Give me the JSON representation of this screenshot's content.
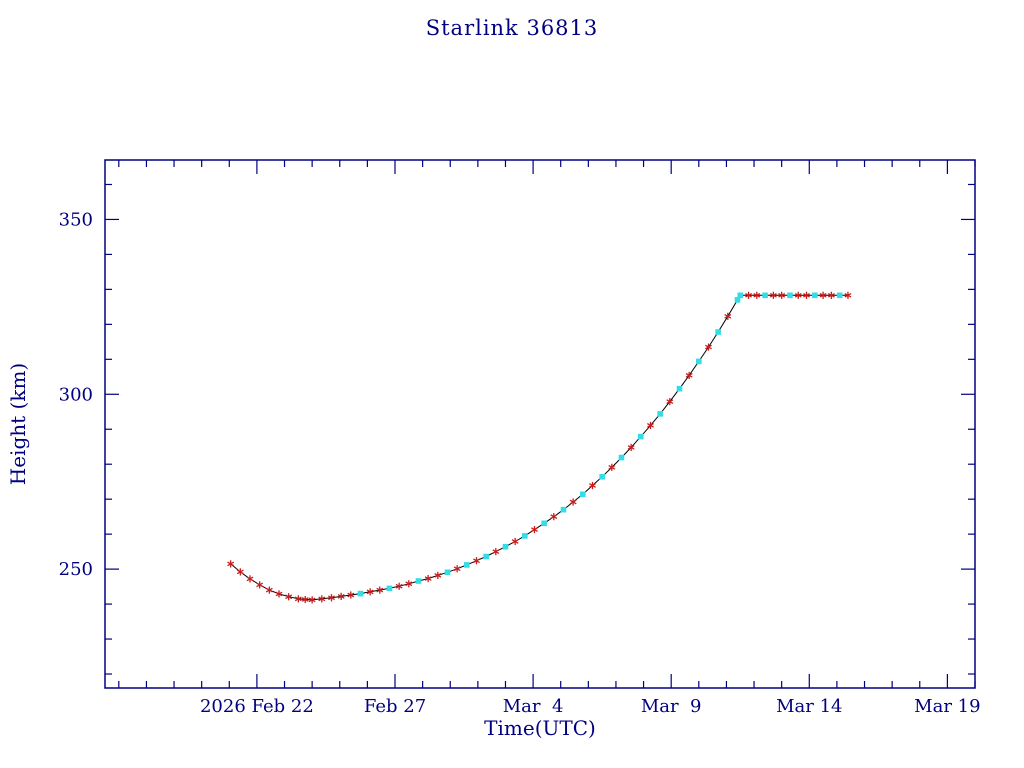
{
  "chart_data": {
    "type": "line",
    "title": "Starlink 36813",
    "xlabel": "Time(UTC)",
    "ylabel": "Height (km)",
    "x_axis": {
      "unit": "days relative to 2026 Feb 22 00:00 UTC tick",
      "range_days": [
        -5.5,
        26.0
      ],
      "major_tick_days": [
        0,
        5,
        10,
        15,
        20,
        25
      ],
      "tick_labels": [
        "2026 Feb 22",
        "Feb 27",
        "Mar  4",
        "Mar  9",
        "Mar 14",
        "Mar 19"
      ],
      "minor_tick_step_days": 1
    },
    "y_axis": {
      "unit": "km",
      "range_km": [
        216,
        367
      ],
      "major_ticks_km": [
        250,
        300,
        350
      ],
      "major_tick_labels": [
        "250",
        "300",
        "350"
      ],
      "minor_tick_step_km": 10
    },
    "colors": {
      "frame": "#000080",
      "text": "#000080",
      "line": "#000000",
      "marker_red": "#c41e1e",
      "marker_cyan": "#33dde8"
    },
    "legend": "none",
    "grid": "off",
    "marker_key": {
      "r": "red asterisk",
      "c": "cyan filled square"
    },
    "points": [
      [
        -0.95,
        251.5,
        "r"
      ],
      [
        -0.6,
        249.2,
        "r"
      ],
      [
        -0.25,
        247.2,
        "r"
      ],
      [
        0.1,
        245.5,
        "r"
      ],
      [
        0.45,
        244.0,
        "r"
      ],
      [
        0.8,
        242.9,
        "r"
      ],
      [
        1.15,
        242.1,
        "r"
      ],
      [
        1.5,
        241.5,
        "r"
      ],
      [
        1.75,
        241.3,
        "r"
      ],
      [
        2.0,
        241.2,
        "r"
      ],
      [
        2.35,
        241.5,
        "r"
      ],
      [
        2.7,
        241.8,
        "r"
      ],
      [
        3.05,
        242.2,
        "r"
      ],
      [
        3.4,
        242.6,
        "r"
      ],
      [
        3.75,
        243.0,
        "c"
      ],
      [
        4.1,
        243.5,
        "r"
      ],
      [
        4.45,
        244.0,
        "r"
      ],
      [
        4.8,
        244.5,
        "c"
      ],
      [
        5.15,
        245.1,
        "r"
      ],
      [
        5.5,
        245.8,
        "r"
      ],
      [
        5.85,
        246.6,
        "c"
      ],
      [
        6.2,
        247.3,
        "r"
      ],
      [
        6.55,
        248.2,
        "r"
      ],
      [
        6.9,
        249.1,
        "c"
      ],
      [
        7.25,
        250.1,
        "r"
      ],
      [
        7.6,
        251.2,
        "c"
      ],
      [
        7.95,
        252.4,
        "r"
      ],
      [
        8.3,
        253.6,
        "c"
      ],
      [
        8.65,
        255.0,
        "r"
      ],
      [
        9.0,
        256.4,
        "c"
      ],
      [
        9.35,
        257.9,
        "r"
      ],
      [
        9.7,
        259.5,
        "c"
      ],
      [
        10.05,
        261.3,
        "r"
      ],
      [
        10.4,
        263.1,
        "c"
      ],
      [
        10.75,
        265.0,
        "r"
      ],
      [
        11.1,
        267.0,
        "c"
      ],
      [
        11.45,
        269.2,
        "r"
      ],
      [
        11.8,
        271.4,
        "c"
      ],
      [
        12.15,
        273.9,
        "r"
      ],
      [
        12.5,
        276.4,
        "c"
      ],
      [
        12.85,
        279.1,
        "r"
      ],
      [
        13.2,
        281.9,
        "c"
      ],
      [
        13.55,
        284.8,
        "r"
      ],
      [
        13.9,
        287.9,
        "c"
      ],
      [
        14.25,
        291.1,
        "r"
      ],
      [
        14.6,
        294.4,
        "c"
      ],
      [
        14.95,
        297.9,
        "r"
      ],
      [
        15.3,
        301.6,
        "c"
      ],
      [
        15.65,
        305.4,
        "r"
      ],
      [
        16.0,
        309.4,
        "c"
      ],
      [
        16.35,
        313.5,
        "r"
      ],
      [
        16.7,
        317.8,
        "c"
      ],
      [
        17.05,
        322.3,
        "r"
      ],
      [
        17.4,
        327.0,
        "c"
      ],
      [
        17.5,
        328.3,
        "c"
      ],
      [
        17.8,
        328.3,
        "r"
      ],
      [
        18.1,
        328.3,
        "r"
      ],
      [
        18.4,
        328.3,
        "c"
      ],
      [
        18.7,
        328.3,
        "r"
      ],
      [
        19.0,
        328.3,
        "r"
      ],
      [
        19.3,
        328.3,
        "c"
      ],
      [
        19.6,
        328.3,
        "r"
      ],
      [
        19.9,
        328.3,
        "r"
      ],
      [
        20.2,
        328.3,
        "c"
      ],
      [
        20.5,
        328.3,
        "r"
      ],
      [
        20.8,
        328.3,
        "r"
      ],
      [
        21.1,
        328.3,
        "c"
      ],
      [
        21.4,
        328.3,
        "r"
      ]
    ]
  }
}
